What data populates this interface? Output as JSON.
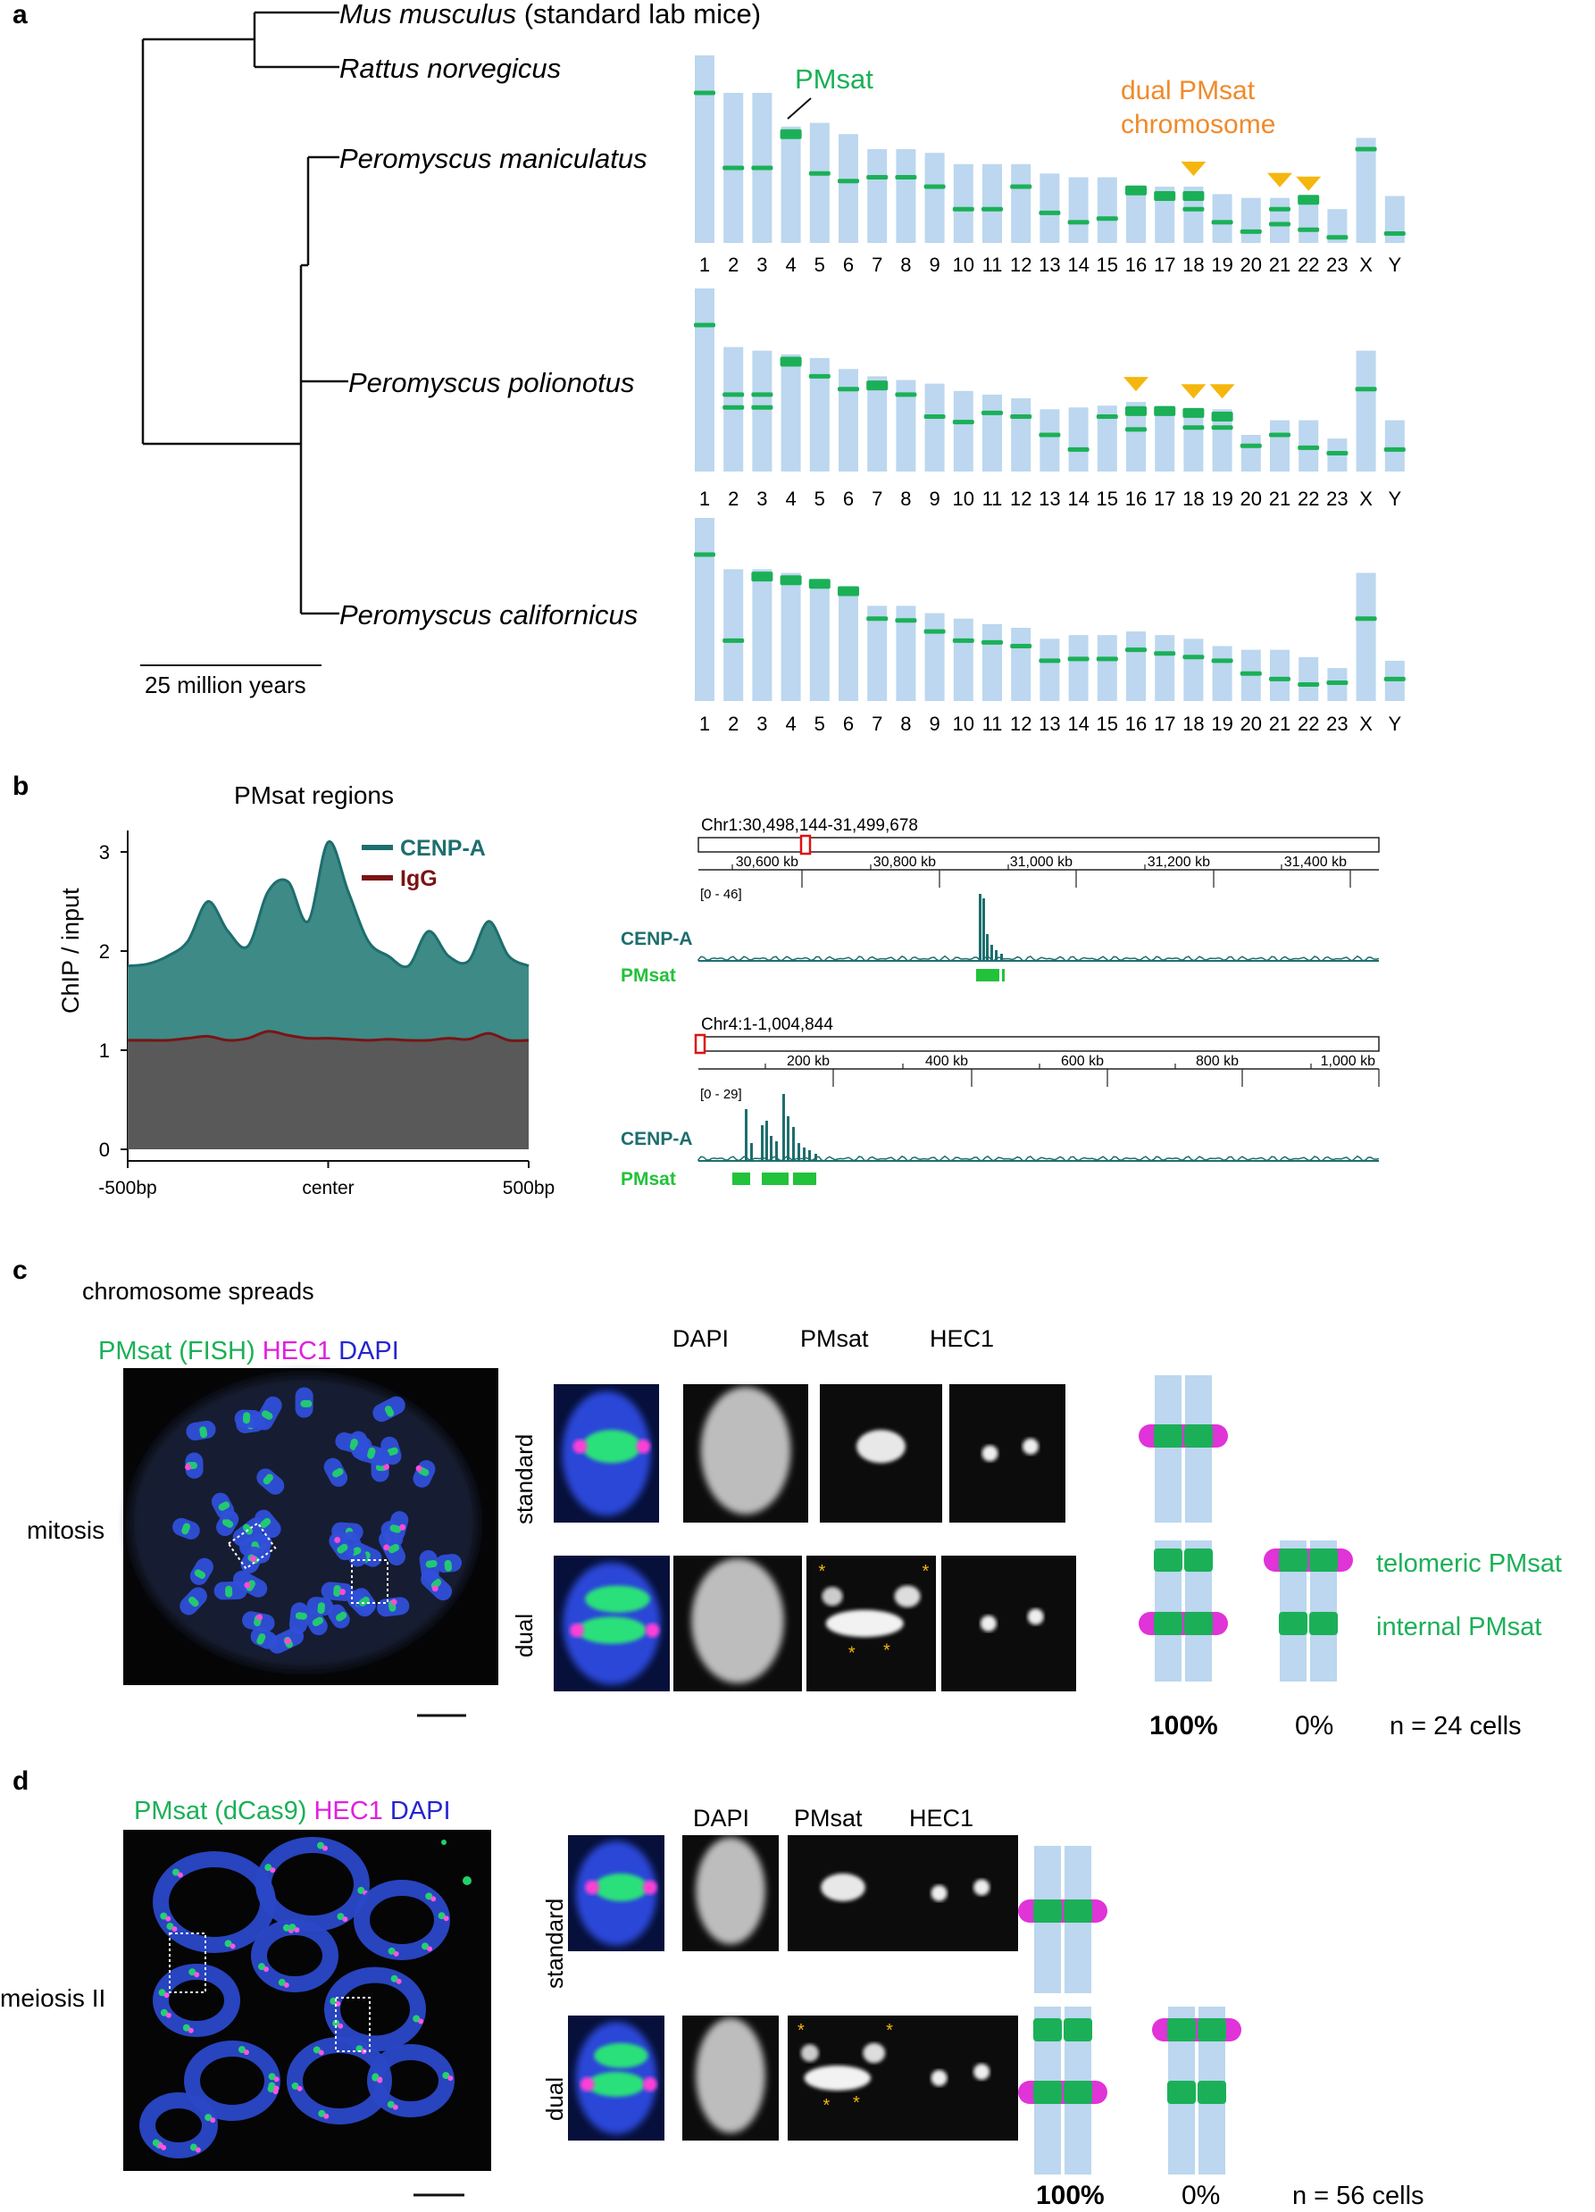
{
  "panel_a": {
    "label": "a",
    "species": [
      {
        "name": "Mus musculus",
        "suffix": " (standard lab mice)"
      },
      {
        "name": "Rattus norvegicus",
        "suffix": ""
      },
      {
        "name": "Peromyscus maniculatus",
        "suffix": ""
      },
      {
        "name": "Peromyscus polionotus",
        "suffix": ""
      },
      {
        "name": "Peromyscus californicus",
        "suffix": ""
      }
    ],
    "scale_label": "25 million years",
    "pmsat_label": "PMsat",
    "dual_label_line1": "dual PMsat",
    "dual_label_line2": "chromosome",
    "chromosome_labels": [
      "1",
      "2",
      "3",
      "4",
      "5",
      "6",
      "7",
      "8",
      "9",
      "10",
      "11",
      "12",
      "13",
      "14",
      "15",
      "16",
      "17",
      "18",
      "19",
      "20",
      "21",
      "22",
      "23",
      "X",
      "Y"
    ],
    "karyotypes": [
      {
        "species": "Peromyscus maniculatus",
        "lengths": [
          1.0,
          0.8,
          0.8,
          0.62,
          0.64,
          0.58,
          0.5,
          0.5,
          0.48,
          0.42,
          0.42,
          0.42,
          0.37,
          0.35,
          0.35,
          0.3,
          0.3,
          0.3,
          0.26,
          0.24,
          0.24,
          0.22,
          0.18,
          0.56,
          0.25
        ],
        "bands": [
          [
            0.8
          ],
          [
            0.4
          ],
          [
            0.4
          ],
          [
            0.58
          ],
          [
            0.37
          ],
          [
            0.33
          ],
          [
            0.35
          ],
          [
            0.35
          ],
          [
            0.3
          ],
          [
            0.18
          ],
          [
            0.18
          ],
          [
            0.3
          ],
          [
            0.16
          ],
          [
            0.11
          ],
          [
            0.13
          ],
          [
            0.28
          ],
          [
            0.25
          ],
          [
            0.25,
            0.18
          ],
          [
            0.11
          ],
          [
            0.06
          ],
          [
            0.18,
            0.1
          ],
          [
            0.23,
            0.07
          ],
          [
            0.03
          ],
          [
            0.5
          ],
          [
            0.05
          ]
        ],
        "dual": [
          false,
          false,
          false,
          false,
          false,
          false,
          false,
          false,
          false,
          false,
          false,
          false,
          false,
          false,
          false,
          false,
          false,
          true,
          false,
          false,
          true,
          true,
          false,
          false,
          false
        ]
      },
      {
        "species": "Peromyscus polionotus",
        "lengths": [
          1.0,
          0.68,
          0.66,
          0.64,
          0.62,
          0.56,
          0.52,
          0.5,
          0.48,
          0.44,
          0.42,
          0.4,
          0.34,
          0.35,
          0.36,
          0.38,
          0.36,
          0.34,
          0.34,
          0.2,
          0.28,
          0.28,
          0.18,
          0.66,
          0.28
        ]
      },
      {
        "species": "Peromyscus californicus",
        "lengths": [
          1.0,
          0.72,
          0.72,
          0.7,
          0.66,
          0.62,
          0.52,
          0.52,
          0.48,
          0.45,
          0.42,
          0.4,
          0.34,
          0.36,
          0.36,
          0.38,
          0.36,
          0.34,
          0.3,
          0.28,
          0.28,
          0.24,
          0.18,
          0.7,
          0.22
        ]
      }
    ],
    "pmsat_color": "#1bb057",
    "chromosome_color": "#bcd7ef",
    "dual_marker_color": "#f5b60e",
    "dual_text_color": "#f08a2a"
  },
  "panel_b": {
    "label": "b",
    "profile_title": "PMsat regions",
    "ylabel": "ChIP / input",
    "legend": [
      "CENP-A",
      "IgG"
    ],
    "x_ticks": [
      "-500bp",
      "center",
      "500bp"
    ],
    "y_ticks": [
      "0",
      "1",
      "2",
      "3"
    ],
    "track1": {
      "locus": "Chr1:30,498,144-31,499,678",
      "ticks": [
        "30,600 kb",
        "30,800 kb",
        "31,000 kb",
        "31,200 kb",
        "31,400 kb"
      ],
      "range": "[0 - 46]",
      "track_label": "CENP-A",
      "annot_label": "PMsat"
    },
    "track2": {
      "locus": "Chr4:1-1,004,844",
      "ticks": [
        "200 kb",
        "400 kb",
        "600 kb",
        "800 kb",
        "1,000 kb"
      ],
      "range": "[0 - 29]",
      "track_label": "CENP-A",
      "annot_label": "PMsat"
    },
    "colors": {
      "cenpa": "#1e6e6e",
      "cenpa_fill": "#3d8a87",
      "igg": "#7a1414",
      "igg_fill": "#595959",
      "pmsat": "#22c23a"
    }
  },
  "chart_data": {
    "type": "area",
    "title": "PMsat regions",
    "xlabel": "",
    "ylabel": "ChIP / input",
    "x": [
      -500,
      -450,
      -400,
      -350,
      -300,
      -250,
      -200,
      -150,
      -100,
      -50,
      0,
      50,
      100,
      150,
      200,
      250,
      300,
      350,
      400,
      450,
      500
    ],
    "ylim": [
      0,
      3.2
    ],
    "series": [
      {
        "name": "CENP-A",
        "values": [
          1.85,
          1.87,
          1.95,
          2.1,
          2.5,
          2.2,
          2.05,
          2.6,
          2.7,
          2.3,
          3.1,
          2.6,
          2.1,
          1.95,
          1.85,
          2.2,
          1.95,
          1.9,
          2.3,
          1.95,
          1.85
        ]
      },
      {
        "name": "IgG",
        "values": [
          1.1,
          1.1,
          1.1,
          1.12,
          1.14,
          1.1,
          1.12,
          1.19,
          1.15,
          1.12,
          1.12,
          1.11,
          1.1,
          1.11,
          1.1,
          1.1,
          1.12,
          1.11,
          1.17,
          1.1,
          1.1
        ]
      }
    ]
  },
  "panel_c": {
    "label": "c",
    "subtitle": "chromosome spreads",
    "stain_green": "PMsat (FISH)",
    "stain_magenta": "HEC1",
    "stain_blue": "DAPI",
    "row_label": "mitosis",
    "channel_headers": [
      "DAPI",
      "PMsat",
      "HEC1"
    ],
    "row_standard": "standard",
    "row_dual": "dual",
    "telomeric_label": "telomeric PMsat",
    "internal_label": "internal PMsat",
    "pct_left": "100%",
    "pct_right": "0%",
    "n_label": "n = 24 cells"
  },
  "panel_d": {
    "label": "d",
    "stain_green": "PMsat (dCas9)",
    "stain_magenta": "HEC1",
    "stain_blue": "DAPI",
    "row_label": "meiosis II",
    "channel_headers": [
      "DAPI",
      "PMsat",
      "HEC1"
    ],
    "row_standard": "standard",
    "row_dual": "dual",
    "pct_left": "100%",
    "pct_right": "0%",
    "n_label": "n = 56 cells"
  }
}
